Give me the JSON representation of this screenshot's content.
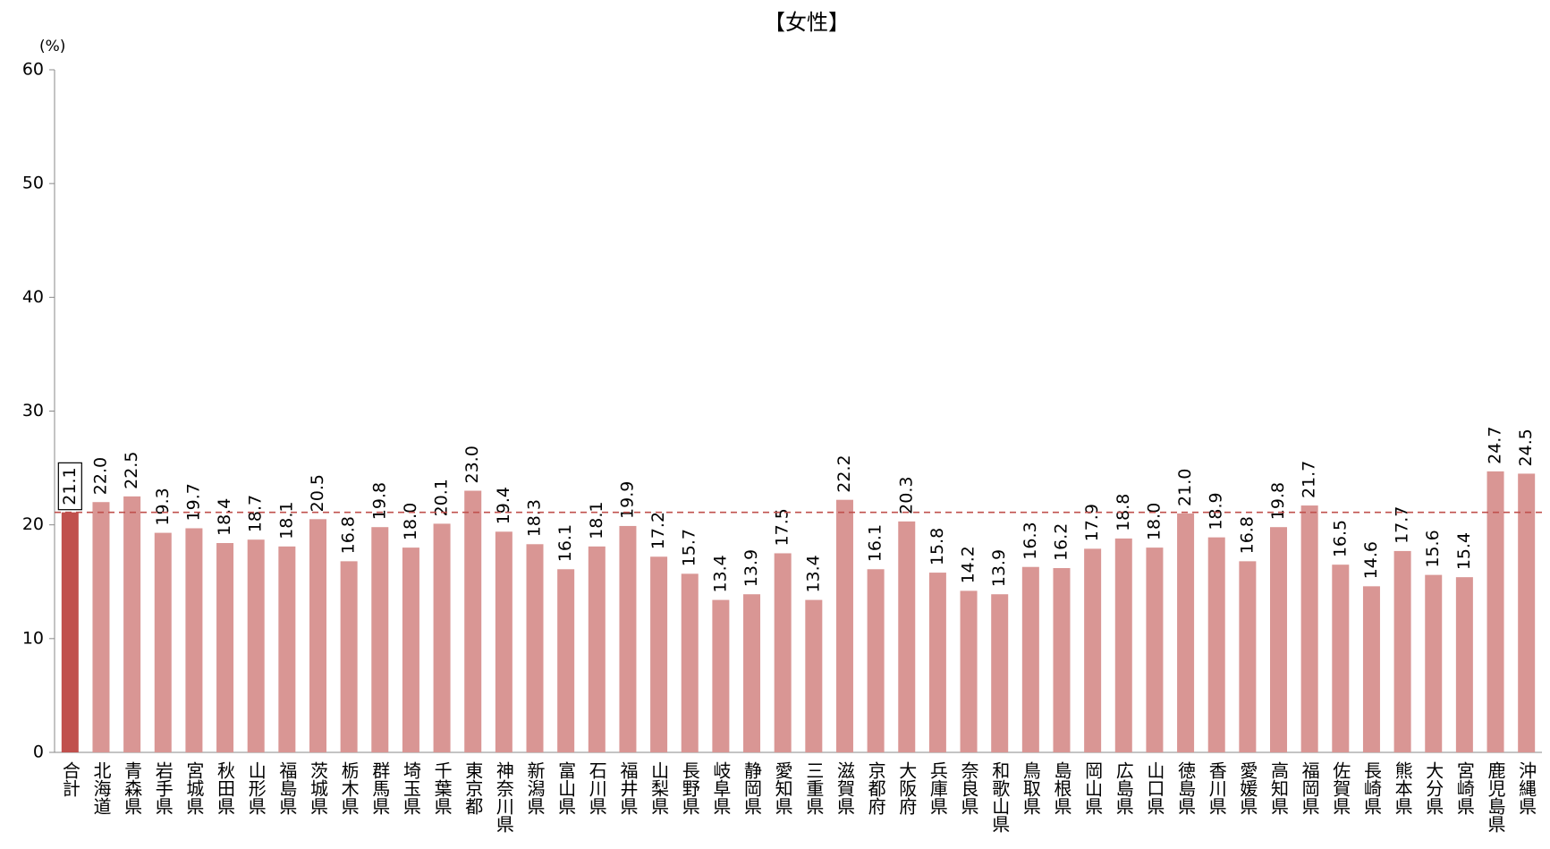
{
  "chart_data": {
    "type": "bar",
    "title": "【女性】",
    "y_label": "(%)",
    "categories": [
      "合計",
      "北海道",
      "青森県",
      "岩手県",
      "宮城県",
      "秋田県",
      "山形県",
      "福島県",
      "茨城県",
      "栃木県",
      "群馬県",
      "埼玉県",
      "千葉県",
      "東京都",
      "神奈川県",
      "新潟県",
      "富山県",
      "石川県",
      "福井県",
      "山梨県",
      "長野県",
      "岐阜県",
      "静岡県",
      "愛知県",
      "三重県",
      "滋賀県",
      "京都府",
      "大阪府",
      "兵庫県",
      "奈良県",
      "和歌山県",
      "鳥取県",
      "島根県",
      "岡山県",
      "広島県",
      "山口県",
      "徳島県",
      "香川県",
      "愛媛県",
      "高知県",
      "福岡県",
      "佐賀県",
      "長崎県",
      "熊本県",
      "大分県",
      "宮崎県",
      "鹿児島県",
      "沖縄県"
    ],
    "values": [
      21.1,
      22.0,
      22.5,
      19.3,
      19.7,
      18.4,
      18.7,
      18.1,
      20.5,
      16.8,
      19.8,
      18.0,
      20.1,
      23.0,
      19.4,
      18.3,
      16.1,
      18.1,
      19.9,
      17.2,
      15.7,
      13.4,
      13.9,
      17.5,
      13.4,
      22.2,
      16.1,
      20.3,
      15.8,
      14.2,
      13.9,
      16.3,
      16.2,
      17.9,
      18.8,
      18.0,
      21.0,
      18.9,
      16.8,
      19.8,
      21.7,
      16.5,
      14.6,
      17.7,
      15.6,
      15.4,
      24.7,
      24.5
    ],
    "value_labels": [
      "21.1",
      "22.0",
      "22.5",
      "19.3",
      "19.7",
      "18.4",
      "18.7",
      "18.1",
      "20.5",
      "16.8",
      "19.8",
      "18.0",
      "20.1",
      "23.0",
      "19.4",
      "18.3",
      "16.1",
      "18.1",
      "19.9",
      "17.2",
      "15.7",
      "13.4",
      "13.9",
      "17.5",
      "13.4",
      "22.2",
      "16.1",
      "20.3",
      "15.8",
      "14.2",
      "13.9",
      "16.3",
      "16.2",
      "17.9",
      "18.8",
      "18.0",
      "21.0",
      "18.9",
      "16.8",
      "19.8",
      "21.7",
      "16.5",
      "14.6",
      "17.7",
      "15.6",
      "15.4",
      "24.7",
      "24.5"
    ],
    "color": "#d99694",
    "first_bar_color": "#c0504d",
    "reference_line": {
      "value": 21.1,
      "color": "#c0504d",
      "style": "dashed"
    },
    "ylim": [
      0,
      60
    ],
    "yticks": [
      0,
      10,
      20,
      30,
      40,
      50,
      60
    ],
    "grid": false
  }
}
